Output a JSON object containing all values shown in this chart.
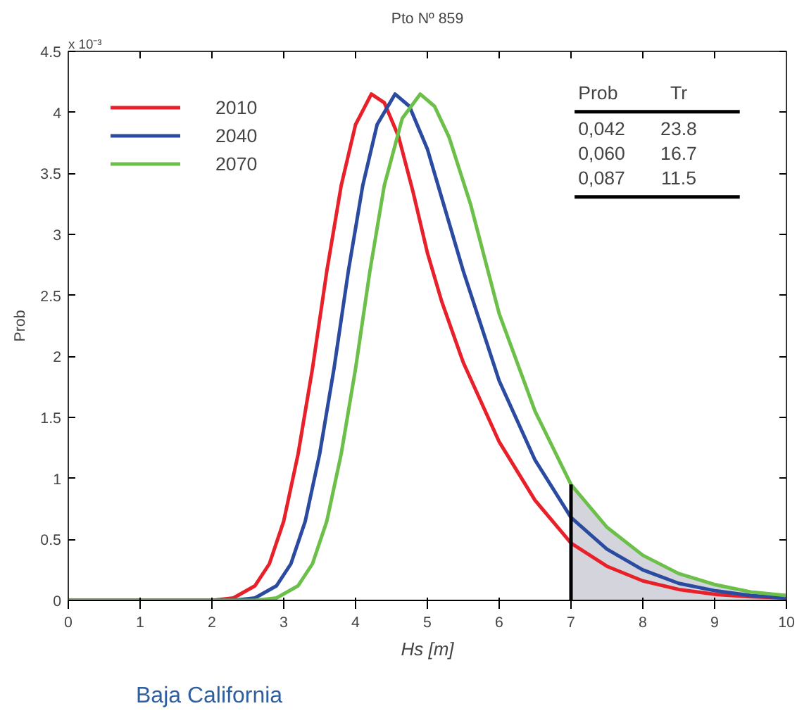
{
  "chart_data": {
    "type": "line",
    "title": "Pto Nº 859",
    "xlabel": "Hs [m]",
    "ylabel": "Prob",
    "xlim": [
      0,
      10
    ],
    "ylim": [
      0,
      4.5
    ],
    "xticks": [
      0,
      1,
      2,
      3,
      4,
      5,
      6,
      7,
      8,
      9,
      10
    ],
    "yticks": [
      0,
      0.5,
      1,
      1.5,
      2,
      2.5,
      3,
      3.5,
      4,
      4.5
    ],
    "grid": false,
    "legend": "top left",
    "line_style": "solid",
    "marker": "none",
    "series": [
      {
        "type": "area",
        "color": "#d4d5dc",
        "x": [
          7.0,
          7.5,
          8,
          8.5,
          9,
          9.5,
          10
        ],
        "values": [
          0.95,
          0.6,
          0.37,
          0.22,
          0.13,
          0.07,
          0.04
        ]
      },
      {
        "name": "2010",
        "color": "#e8202a",
        "x": [
          0,
          2,
          2.3,
          2.6,
          2.8,
          3.0,
          3.2,
          3.4,
          3.6,
          3.8,
          4.0,
          4.22,
          4.4,
          4.6,
          4.8,
          5.0,
          5.2,
          5.5,
          6.0,
          6.5,
          7.0,
          7.5,
          8,
          8.5,
          9,
          9.5,
          10
        ],
        "values": [
          0,
          0,
          0.02,
          0.12,
          0.3,
          0.65,
          1.2,
          1.9,
          2.7,
          3.4,
          3.9,
          4.15,
          4.08,
          3.8,
          3.35,
          2.85,
          2.45,
          1.95,
          1.3,
          0.82,
          0.47,
          0.28,
          0.16,
          0.09,
          0.05,
          0.03,
          0.02
        ]
      },
      {
        "name": "2040",
        "color": "#2b4ba0",
        "x": [
          0,
          2.3,
          2.6,
          2.9,
          3.1,
          3.3,
          3.5,
          3.7,
          3.9,
          4.1,
          4.3,
          4.55,
          4.75,
          5.0,
          5.2,
          5.5,
          6.0,
          6.5,
          7.0,
          7.5,
          8,
          8.5,
          9,
          9.5,
          10
        ],
        "values": [
          0,
          0,
          0.02,
          0.12,
          0.3,
          0.65,
          1.2,
          1.9,
          2.7,
          3.4,
          3.9,
          4.15,
          4.05,
          3.7,
          3.3,
          2.7,
          1.8,
          1.15,
          0.68,
          0.42,
          0.25,
          0.14,
          0.08,
          0.04,
          0.02
        ]
      },
      {
        "name": "2070",
        "color": "#6cc04a",
        "x": [
          0,
          2.6,
          2.9,
          3.2,
          3.4,
          3.6,
          3.8,
          4.0,
          4.2,
          4.4,
          4.65,
          4.9,
          5.1,
          5.3,
          5.6,
          5.8,
          6.0,
          6.5,
          7.0,
          7.5,
          8,
          8.5,
          9,
          9.5,
          10
        ],
        "values": [
          0,
          0,
          0.02,
          0.12,
          0.3,
          0.65,
          1.2,
          1.9,
          2.7,
          3.4,
          3.95,
          4.15,
          4.05,
          3.8,
          3.25,
          2.8,
          2.35,
          1.55,
          0.95,
          0.6,
          0.37,
          0.22,
          0.13,
          0.07,
          0.04
        ]
      }
    ],
    "ref_lines": [
      {
        "axis": "x",
        "value": 7,
        "color": "#000000"
      }
    ],
    "annotations": [
      "x 10⁻³",
      "Prob",
      "Tr",
      "0,042",
      "23.8",
      "0,060",
      "16.7",
      "0,087",
      "11.5",
      "Baja California"
    ]
  }
}
